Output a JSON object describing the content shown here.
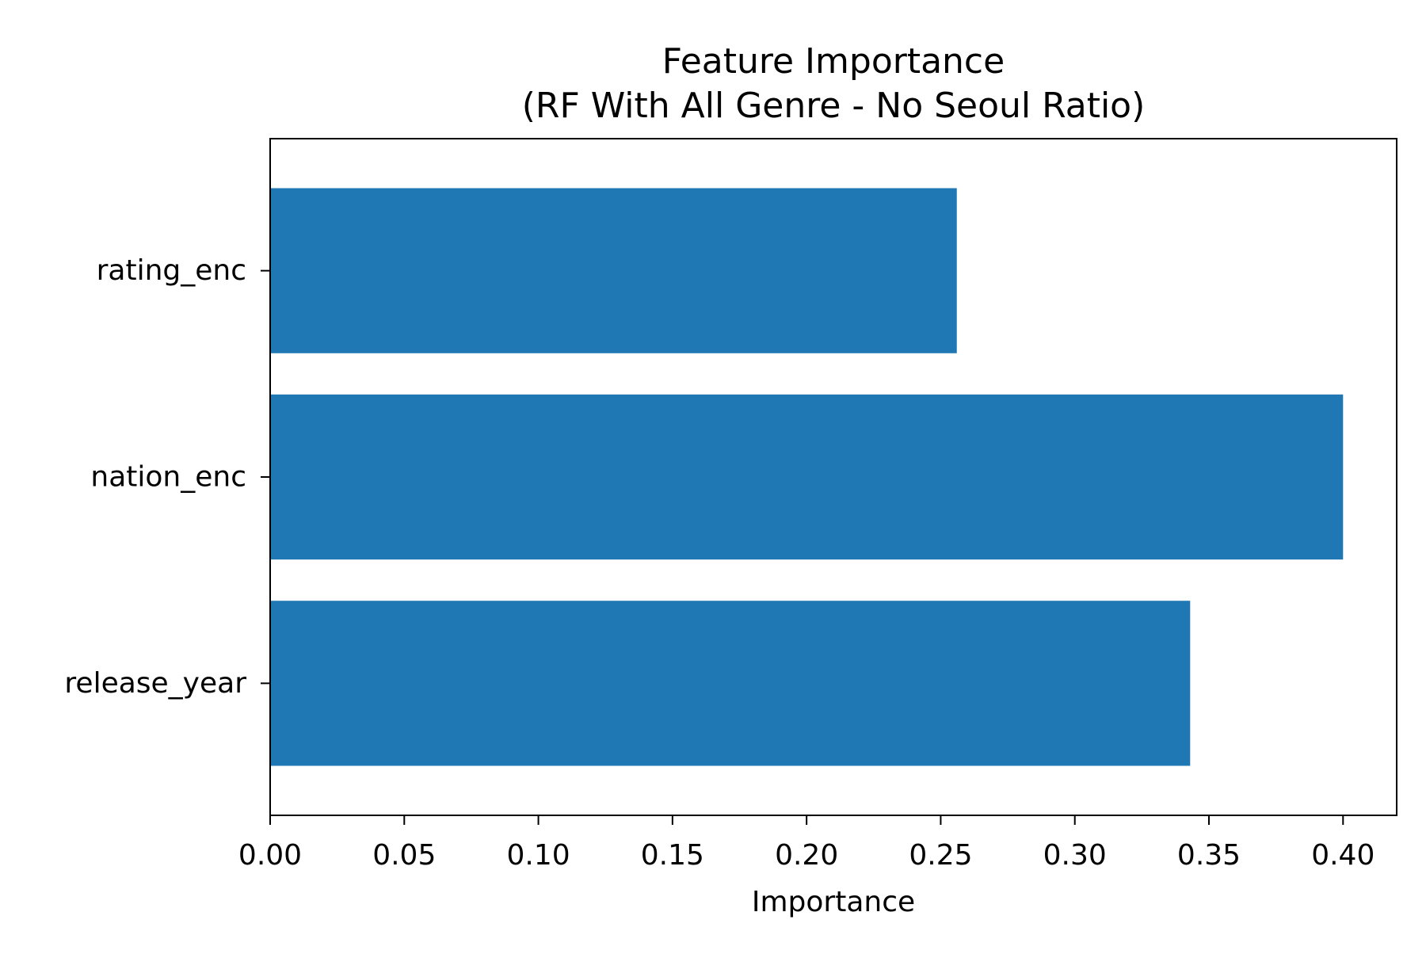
{
  "chart_data": {
    "type": "bar",
    "orientation": "horizontal",
    "title": "Feature Importance",
    "subtitle": "(RF With All Genre - No Seoul Ratio)",
    "xlabel": "Importance",
    "ylabel": "",
    "categories": [
      "rating_enc",
      "nation_enc",
      "release_year"
    ],
    "values": [
      0.256,
      0.4,
      0.343
    ],
    "xlim": [
      0,
      0.42
    ],
    "xticks": [
      0.0,
      0.05,
      0.1,
      0.15,
      0.2,
      0.25,
      0.3,
      0.35,
      0.4
    ],
    "xtick_labels": [
      "0.00",
      "0.05",
      "0.10",
      "0.15",
      "0.20",
      "0.25",
      "0.30",
      "0.35",
      "0.40"
    ],
    "grid": false,
    "legend": "none",
    "bar_color": "#1f77b4"
  }
}
